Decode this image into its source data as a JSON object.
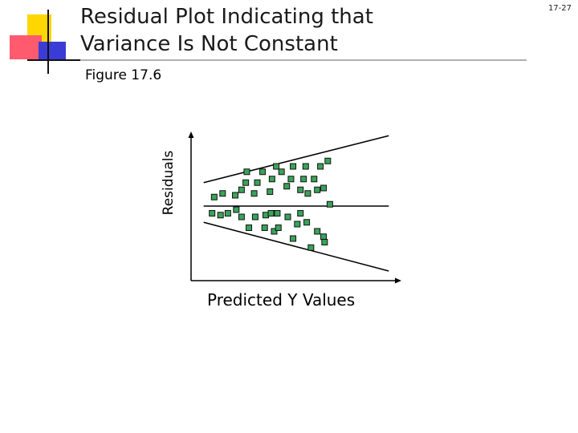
{
  "slide": {
    "title_line1": "Residual Plot Indicating that",
    "title_line2": "Variance Is Not Constant",
    "number": "17-27",
    "subtitle": "Figure 17.6"
  },
  "colors": {
    "deco_yellow": "#ffd700",
    "deco_red": "#ff5a6e",
    "deco_blue": "#3b3bd6",
    "rule_gray": "#b0b0b0",
    "point_fill": "#3aa35a",
    "point_border": "#111111"
  },
  "chart_data": {
    "type": "scatter",
    "title": "",
    "xlabel": "Predicted Y Values",
    "ylabel": "Residuals",
    "xlim": [
      0,
      10
    ],
    "ylim": [
      -3,
      3
    ],
    "zero_line": 0,
    "funnel_upper": [
      [
        0.6,
        0.65
      ],
      [
        7.6,
        1.7
      ]
    ],
    "funnel_lower": [
      [
        0.6,
        -0.45
      ],
      [
        7.6,
        -1.45
      ]
    ],
    "points": [
      {
        "x": 1.1,
        "y": 0.25
      },
      {
        "x": 1.0,
        "y": -0.2
      },
      {
        "x": 1.5,
        "y": 0.35
      },
      {
        "x": 1.4,
        "y": -0.25
      },
      {
        "x": 1.75,
        "y": -0.2
      },
      {
        "x": 2.1,
        "y": 0.3
      },
      {
        "x": 2.15,
        "y": -0.1
      },
      {
        "x": 2.4,
        "y": 0.45
      },
      {
        "x": 2.4,
        "y": -0.3
      },
      {
        "x": 2.6,
        "y": 0.65
      },
      {
        "x": 2.65,
        "y": 0.95
      },
      {
        "x": 2.75,
        "y": -0.6
      },
      {
        "x": 3.0,
        "y": 0.35
      },
      {
        "x": 3.05,
        "y": -0.3
      },
      {
        "x": 3.15,
        "y": 0.65
      },
      {
        "x": 3.4,
        "y": 0.95
      },
      {
        "x": 3.5,
        "y": -0.6
      },
      {
        "x": 3.55,
        "y": -0.25
      },
      {
        "x": 3.75,
        "y": 0.4
      },
      {
        "x": 3.8,
        "y": -0.2
      },
      {
        "x": 3.85,
        "y": 0.75
      },
      {
        "x": 3.95,
        "y": -0.7
      },
      {
        "x": 4.05,
        "y": 1.1
      },
      {
        "x": 4.1,
        "y": -0.2
      },
      {
        "x": 4.15,
        "y": -0.6
      },
      {
        "x": 4.3,
        "y": 0.95
      },
      {
        "x": 4.55,
        "y": 0.55
      },
      {
        "x": 4.6,
        "y": -0.3
      },
      {
        "x": 4.75,
        "y": 0.75
      },
      {
        "x": 4.85,
        "y": 1.1
      },
      {
        "x": 4.85,
        "y": -0.9
      },
      {
        "x": 5.05,
        "y": -0.5
      },
      {
        "x": 5.2,
        "y": 0.45
      },
      {
        "x": 5.2,
        "y": -0.2
      },
      {
        "x": 5.35,
        "y": 0.75
      },
      {
        "x": 5.45,
        "y": 1.1
      },
      {
        "x": 5.5,
        "y": -0.45
      },
      {
        "x": 5.55,
        "y": 0.35
      },
      {
        "x": 5.7,
        "y": -1.15
      },
      {
        "x": 5.85,
        "y": 0.75
      },
      {
        "x": 6.0,
        "y": -0.7
      },
      {
        "x": 6.0,
        "y": 0.45
      },
      {
        "x": 6.15,
        "y": 1.1
      },
      {
        "x": 6.3,
        "y": 0.5
      },
      {
        "x": 6.3,
        "y": -0.85
      },
      {
        "x": 6.35,
        "y": -1.0
      },
      {
        "x": 6.6,
        "y": 0.05
      },
      {
        "x": 6.5,
        "y": 1.25
      }
    ]
  }
}
